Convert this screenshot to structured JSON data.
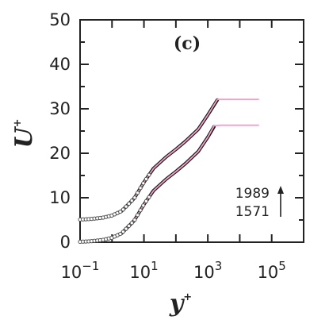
{
  "chart_data": {
    "type": "line",
    "panel_label": "(c)",
    "xlabel": "y",
    "xlabel_sup": "+",
    "ylabel": "U",
    "ylabel_sup": "+",
    "x_scale": "log",
    "xlim": [
      0.1,
      1000000
    ],
    "ylim": [
      0,
      50
    ],
    "x_ticks": [
      {
        "value": 0.1,
        "base": "10",
        "exp": "−1"
      },
      {
        "value": 10,
        "base": "10",
        "exp": "1"
      },
      {
        "value": 1000,
        "base": "10",
        "exp": "3"
      },
      {
        "value": 100000,
        "base": "10",
        "exp": "5"
      }
    ],
    "y_ticks": [
      0,
      10,
      20,
      30,
      40,
      50
    ],
    "grid": false,
    "annotation": {
      "labels": [
        "1989",
        "1571"
      ],
      "arrow": "up"
    },
    "colors": {
      "dns": "#1a1a1a",
      "model": "#f2a0c6",
      "marker_outline": "#555555"
    },
    "series": [
      {
        "re_tau": "1571",
        "offset": 0,
        "dns": {
          "x": [
            0.1,
            0.2,
            0.5,
            1,
            2,
            5,
            10,
            20,
            50,
            100,
            200,
            500,
            1000,
            1571
          ],
          "y": [
            0.1,
            0.2,
            0.5,
            1.0,
            2.0,
            4.9,
            8.5,
            11.6,
            14.2,
            15.9,
            17.7,
            20.4,
            23.6,
            26.0
          ]
        },
        "model": {
          "x": [
            0.1,
            0.2,
            0.5,
            1,
            2,
            5,
            10,
            20,
            50,
            100,
            200,
            500,
            1000,
            1571,
            2500,
            5000,
            10000,
            20000,
            40000
          ],
          "y": [
            0.1,
            0.2,
            0.5,
            1.0,
            2.0,
            4.9,
            8.5,
            11.6,
            14.2,
            15.9,
            17.7,
            20.4,
            23.6,
            26.2,
            26.3,
            26.3,
            26.3,
            26.3,
            26.3
          ]
        }
      },
      {
        "re_tau": "1989",
        "offset": 5,
        "dns": {
          "x": [
            0.1,
            0.2,
            0.5,
            1,
            2,
            5,
            10,
            20,
            50,
            100,
            200,
            500,
            1000,
            1989
          ],
          "y": [
            5.1,
            5.2,
            5.5,
            6.0,
            7.0,
            9.9,
            13.5,
            16.6,
            19.2,
            20.9,
            22.7,
            25.4,
            28.6,
            32.0
          ]
        },
        "model": {
          "x": [
            0.1,
            0.2,
            0.5,
            1,
            2,
            5,
            10,
            20,
            50,
            100,
            200,
            500,
            1000,
            1989,
            3000,
            5000,
            10000,
            20000,
            40000
          ],
          "y": [
            5.1,
            5.2,
            5.5,
            6.0,
            7.0,
            9.9,
            13.5,
            16.6,
            19.2,
            20.9,
            22.7,
            25.4,
            28.6,
            32.1,
            32.1,
            32.1,
            32.1,
            32.1,
            32.1
          ]
        }
      }
    ]
  }
}
